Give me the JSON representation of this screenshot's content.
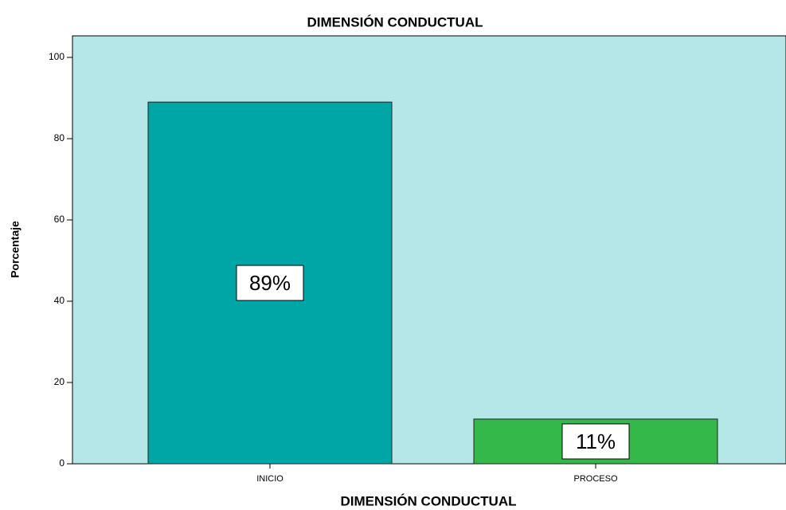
{
  "chart_data": {
    "type": "bar",
    "title": "DIMENSIÓN CONDUCTUAL",
    "x_label": "DIMENSIÓN CONDUCTUAL",
    "y_label": "Porcentaje",
    "categories": [
      "INICIO",
      "PROCESO"
    ],
    "values": [
      89,
      11
    ],
    "value_labels": [
      "89%",
      "11%"
    ],
    "colors": [
      "#00a5a5",
      "#34b84a"
    ],
    "background": "#b5e6e8",
    "ylim": [
      0,
      105.3
    ],
    "yticks": [
      0,
      20,
      40,
      60,
      80,
      100
    ]
  }
}
